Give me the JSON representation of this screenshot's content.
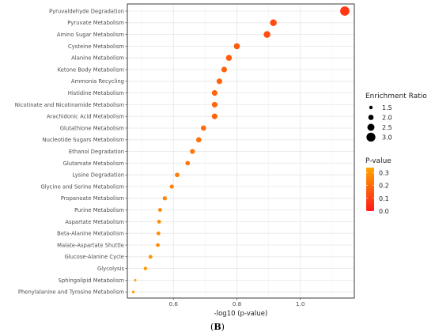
{
  "chart_data": {
    "type": "scatter",
    "xlabel": "-log10 (p-value)",
    "xlim": [
      0.455,
      1.17
    ],
    "xticks": [
      0.6,
      0.8,
      1.0
    ],
    "xtick_labels": [
      "0.6",
      "0.8",
      "1.0"
    ],
    "categories": [
      "Pyruvaldehyde Degradation",
      "Pyruvate Metabolism",
      "Amino Sugar Metabolism",
      "Cysteine Metabolism",
      "Alanine Metabolism",
      "Ketone Body Metabolism",
      "Ammonia Recycling",
      "Histidine Metabolism",
      "Nicotinate and Nicotinamide Metabolism",
      "Arachidonic Acid Metabolism",
      "Glutathione Metabolism",
      "Nucleotide Sugars Metabolism",
      "Ethanol Degradation",
      "Glutamate Metabolism",
      "Lysine Degradation",
      "Glycine and Serine Metabolism",
      "Propanoate Metabolism",
      "Purine Metabolism",
      "Aspartate Metabolism",
      "Beta-Alanine Metabolism",
      "Malate-Aspartate Shuttle",
      "Glucose-Alanine Cycle",
      "Glycolysis",
      "Sphingolipid Metabolism",
      "Phenylalanine and Tyrosine Metabolism"
    ],
    "x": [
      1.14,
      0.915,
      0.895,
      0.8,
      0.775,
      0.76,
      0.745,
      0.73,
      0.73,
      0.73,
      0.695,
      0.68,
      0.66,
      0.645,
      0.612,
      0.595,
      0.573,
      0.558,
      0.555,
      0.553,
      0.551,
      0.528,
      0.512,
      0.48,
      0.474
    ],
    "enrichment_ratio": [
      3.1,
      2.4,
      2.4,
      2.2,
      2.2,
      2.1,
      2.1,
      2.1,
      2.1,
      2.1,
      2.0,
      2.0,
      1.9,
      1.8,
      1.8,
      1.7,
      1.7,
      1.6,
      1.6,
      1.6,
      1.6,
      1.6,
      1.5,
      1.2,
      1.3
    ],
    "p_value": [
      0.072,
      0.122,
      0.127,
      0.158,
      0.168,
      0.174,
      0.18,
      0.186,
      0.186,
      0.186,
      0.202,
      0.209,
      0.219,
      0.226,
      0.244,
      0.254,
      0.267,
      0.277,
      0.279,
      0.28,
      0.281,
      0.296,
      0.308,
      0.331,
      0.336
    ],
    "grid": true,
    "legend": {
      "placement": "right",
      "size_title": "Enrichment Ratio",
      "size_values": [
        1.5,
        2.0,
        2.5,
        3.0
      ],
      "size_labels": [
        "1.5",
        "2.0",
        "2.5",
        "3.0"
      ],
      "color_title": "P-value",
      "color_ticks": [
        0.3,
        0.2,
        0.1,
        0.0
      ],
      "color_tick_labels": [
        "0.3",
        "0.2",
        "0.1",
        "0.0"
      ],
      "color_range": [
        0.0,
        0.34
      ],
      "color_low": "#ff1a1a",
      "color_high": "#ffa500"
    }
  },
  "caption": {
    "open": "(",
    "letter": "B",
    "close": ")"
  }
}
